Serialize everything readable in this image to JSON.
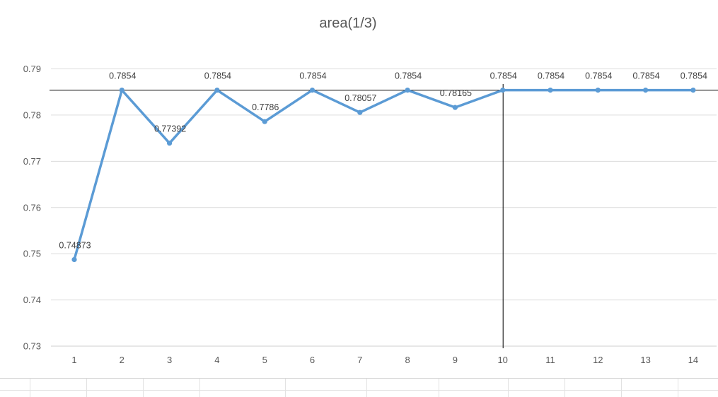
{
  "chart_data": {
    "type": "line",
    "title": "area(1/3)",
    "categories": [
      "1",
      "2",
      "3",
      "4",
      "5",
      "6",
      "7",
      "8",
      "9",
      "10",
      "11",
      "12",
      "13",
      "14"
    ],
    "series": [
      {
        "values": [
          0.74873,
          0.7854,
          0.77392,
          0.7854,
          0.7786,
          0.7854,
          0.78057,
          0.7854,
          0.78165,
          0.7854,
          0.7854,
          0.7854,
          0.7854,
          0.7854
        ],
        "data_labels": [
          "0.74873",
          "0.7854",
          "0.77392",
          "0.7854",
          "0.7786",
          "0.7854",
          "0.78057",
          "0.7854",
          "0.78165",
          "0.7854",
          "0.7854",
          "0.7854",
          "0.7854",
          "0.7854"
        ],
        "color": "#5b9bd5"
      }
    ],
    "ylim": [
      0.73,
      0.79
    ],
    "yticks": [
      "0.73",
      "0.74",
      "0.75",
      "0.76",
      "0.77",
      "0.78",
      "0.79"
    ],
    "grid": true,
    "legend": "none",
    "reference_lines": {
      "horizontal_y": 0.7854,
      "vertical_x": "10",
      "color": "#000000"
    }
  }
}
